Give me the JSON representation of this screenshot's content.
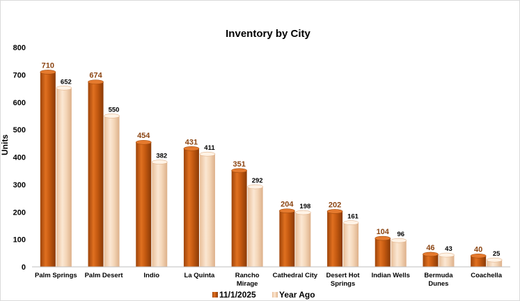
{
  "chart_data": {
    "type": "bar",
    "title": "Inventory by City",
    "xlabel": "",
    "ylabel": "Units",
    "ylim": [
      0,
      800
    ],
    "yticks": [
      0,
      100,
      200,
      300,
      400,
      500,
      600,
      700,
      800
    ],
    "grid": false,
    "legend_position": "bottom",
    "categories": [
      [
        "Palm Springs"
      ],
      [
        "Palm Desert"
      ],
      [
        "Indio"
      ],
      [
        "La Quinta"
      ],
      [
        "Rancho",
        "Mirage"
      ],
      [
        "Cathedral City"
      ],
      [
        "Desert Hot",
        "Springs"
      ],
      [
        "Indian Wells"
      ],
      [
        "Bermuda",
        "Dunes"
      ],
      [
        "Coachella"
      ]
    ],
    "series": [
      {
        "name": "11/1/2025",
        "color": "#C55A11",
        "values": [
          710,
          674,
          454,
          431,
          351,
          204,
          202,
          104,
          46,
          40
        ]
      },
      {
        "name": "Year Ago",
        "color": "#F4D6B8",
        "values": [
          652,
          550,
          382,
          411,
          292,
          198,
          161,
          96,
          43,
          25
        ]
      }
    ]
  }
}
